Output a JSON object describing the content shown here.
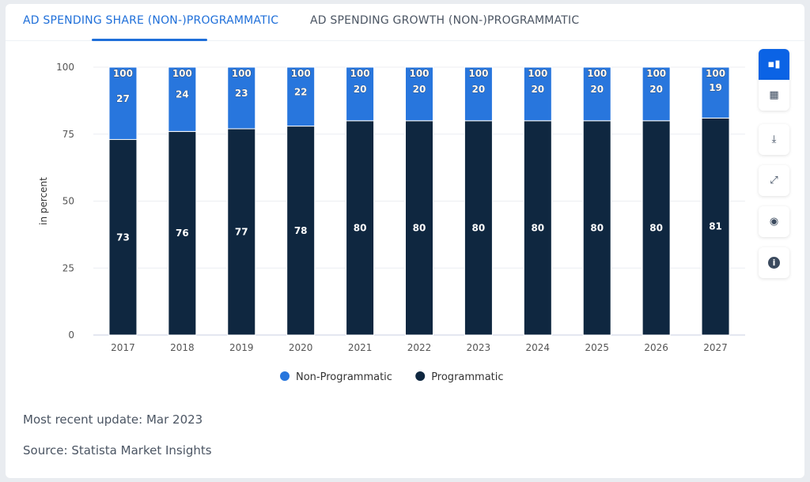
{
  "tabs": [
    {
      "label": "AD SPENDING SHARE (NON-)PROGRAMMATIC",
      "active": true
    },
    {
      "label": "AD SPENDING GROWTH (NON-)PROGRAMMATIC",
      "active": false
    }
  ],
  "toolbar": [
    {
      "icon": "bar-chart-icon",
      "active": true
    },
    {
      "icon": "table-icon"
    },
    {
      "icon": "download-icon"
    },
    {
      "icon": "expand-icon"
    },
    {
      "icon": "hide-icon"
    },
    {
      "icon": "info-icon"
    }
  ],
  "footer": {
    "update": "Most recent update: Mar 2023",
    "source": "Source: Statista Market Insights"
  },
  "chart_data": {
    "type": "bar",
    "stacked": true,
    "categories": [
      "2017",
      "2018",
      "2019",
      "2020",
      "2021",
      "2022",
      "2023",
      "2024",
      "2025",
      "2026",
      "2027"
    ],
    "series": [
      {
        "name": "Programmatic",
        "color": "#0f2740",
        "values": [
          73,
          76,
          77,
          78,
          80,
          80,
          80,
          80,
          80,
          80,
          81
        ]
      },
      {
        "name": "Non-Programmatic",
        "color": "#2876dd",
        "values": [
          27,
          24,
          23,
          22,
          20,
          20,
          20,
          20,
          20,
          20,
          19
        ]
      }
    ],
    "totals": [
      100,
      100,
      100,
      100,
      100,
      100,
      100,
      100,
      100,
      100,
      100
    ],
    "ylabel": "in percent",
    "ylim": [
      0,
      100
    ],
    "yticks": [
      0,
      25,
      50,
      75,
      100
    ],
    "grid": true,
    "legend": "bottom"
  }
}
